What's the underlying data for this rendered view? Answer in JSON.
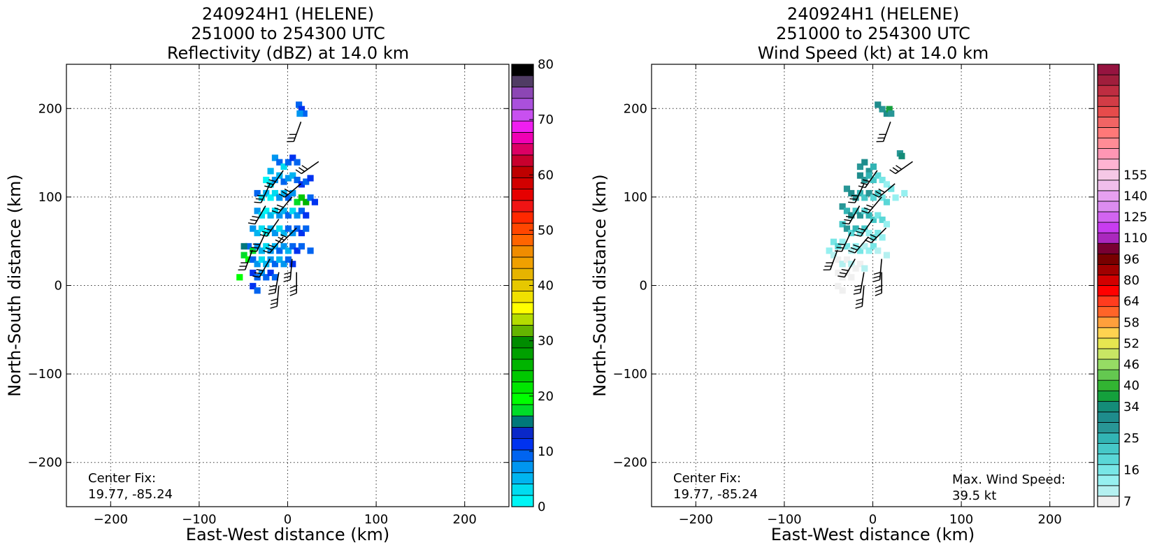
{
  "chart_data": [
    {
      "type": "heatmap",
      "title_lines": [
        "240924H1 (HELENE)",
        "251000 to 254300 UTC",
        "Reflectivity (dBZ) at 14.0 km"
      ],
      "xlabel": "East-West distance (km)",
      "ylabel": "North-South distance (km)",
      "xlim": [
        -250,
        250
      ],
      "ylim": [
        -250,
        250
      ],
      "xticks": [
        -200,
        -100,
        0,
        100,
        200
      ],
      "yticks": [
        -200,
        -100,
        0,
        100,
        200
      ],
      "xtick_labels": [
        "−200",
        "−100",
        "0",
        "100",
        "200"
      ],
      "ytick_labels": [
        "−200",
        "−100",
        "0",
        "100",
        "200"
      ],
      "grid": true,
      "annotations": {
        "center_fix_label": "Center Fix:",
        "center_fix_value": "19.77, -85.24"
      },
      "colorbar": {
        "range": [
          0,
          80
        ],
        "tick_values": [
          0,
          10,
          20,
          30,
          40,
          50,
          60,
          70,
          80
        ],
        "tick_labels": [
          "0",
          "10",
          "20",
          "30",
          "40",
          "50",
          "60",
          "70",
          "80"
        ],
        "colors": [
          "#00f5f5",
          "#00dcf0",
          "#00b4f0",
          "#0096f0",
          "#0064f0",
          "#0032f0",
          "#0a28c8",
          "#00787a",
          "#00dc28",
          "#00ff00",
          "#00e600",
          "#00c800",
          "#00b400",
          "#00a000",
          "#008c00",
          "#64b400",
          "#b4dc00",
          "#ffff00",
          "#f0e100",
          "#e6c800",
          "#e6b400",
          "#f0a000",
          "#f08c00",
          "#ff6400",
          "#ff4600",
          "#ff2800",
          "#f01414",
          "#e60000",
          "#d20000",
          "#be0000",
          "#c8002d",
          "#dc0064",
          "#f000b4",
          "#f01ef0",
          "#c850f0",
          "#aa50dc",
          "#8c46b4",
          "#503c64",
          "#000000"
        ]
      },
      "points": [
        [
          12,
          205,
          "#0064f0"
        ],
        [
          15,
          200,
          "#0032f0"
        ],
        [
          18,
          195,
          "#0064f0"
        ],
        [
          13,
          195,
          "#0096f0"
        ],
        [
          -15,
          145,
          "#0096f0"
        ],
        [
          -10,
          140,
          "#0064f0"
        ],
        [
          -5,
          135,
          "#00dcf0"
        ],
        [
          0,
          140,
          "#0064f0"
        ],
        [
          5,
          145,
          "#0032f0"
        ],
        [
          10,
          140,
          "#0064f0"
        ],
        [
          -20,
          130,
          "#00b4f0"
        ],
        [
          -25,
          120,
          "#00f5f5"
        ],
        [
          -20,
          115,
          "#00dcf0"
        ],
        [
          -15,
          120,
          "#0096f0"
        ],
        [
          -10,
          125,
          "#00b4f0"
        ],
        [
          -5,
          118,
          "#0064f0"
        ],
        [
          0,
          122,
          "#0096f0"
        ],
        [
          5,
          125,
          "#00b4f0"
        ],
        [
          10,
          120,
          "#0064f0"
        ],
        [
          15,
          115,
          "#0032f0"
        ],
        [
          20,
          118,
          "#0064f0"
        ],
        [
          25,
          122,
          "#0032f0"
        ],
        [
          -35,
          105,
          "#0064f0"
        ],
        [
          -30,
          100,
          "#00dcf0"
        ],
        [
          -25,
          105,
          "#00b4f0"
        ],
        [
          -20,
          100,
          "#00f5f5"
        ],
        [
          -15,
          105,
          "#00dcf0"
        ],
        [
          -10,
          100,
          "#0096f0"
        ],
        [
          -5,
          105,
          "#00b4f0"
        ],
        [
          0,
          100,
          "#0064f0"
        ],
        [
          5,
          105,
          "#0096f0"
        ],
        [
          10,
          95,
          "#00dc28"
        ],
        [
          15,
          100,
          "#00c800"
        ],
        [
          20,
          95,
          "#00b400"
        ],
        [
          25,
          100,
          "#0064f0"
        ],
        [
          30,
          95,
          "#0032f0"
        ],
        [
          -35,
          85,
          "#0096f0"
        ],
        [
          -30,
          80,
          "#00dcf0"
        ],
        [
          -25,
          85,
          "#00f5f5"
        ],
        [
          -20,
          80,
          "#00b4f0"
        ],
        [
          -15,
          85,
          "#00dcf0"
        ],
        [
          -10,
          80,
          "#0096f0"
        ],
        [
          -5,
          85,
          "#00b4f0"
        ],
        [
          0,
          80,
          "#0064f0"
        ],
        [
          5,
          85,
          "#00dcf0"
        ],
        [
          10,
          80,
          "#0096f0"
        ],
        [
          15,
          85,
          "#0064f0"
        ],
        [
          20,
          80,
          "#0032f0"
        ],
        [
          -40,
          65,
          "#0096f0"
        ],
        [
          -35,
          60,
          "#00b4f0"
        ],
        [
          -30,
          65,
          "#00dcf0"
        ],
        [
          -25,
          60,
          "#00f5f5"
        ],
        [
          -20,
          65,
          "#00b4f0"
        ],
        [
          -15,
          60,
          "#0096f0"
        ],
        [
          -10,
          65,
          "#00dcf0"
        ],
        [
          -5,
          60,
          "#00b4f0"
        ],
        [
          0,
          65,
          "#0064f0"
        ],
        [
          5,
          60,
          "#0096f0"
        ],
        [
          10,
          65,
          "#0064f0"
        ],
        [
          15,
          60,
          "#0032f0"
        ],
        [
          20,
          65,
          "#0064f0"
        ],
        [
          -45,
          45,
          "#0064f0"
        ],
        [
          -40,
          40,
          "#00dc28"
        ],
        [
          -35,
          45,
          "#0096f0"
        ],
        [
          -30,
          40,
          "#00b4f0"
        ],
        [
          -25,
          45,
          "#00dcf0"
        ],
        [
          -20,
          40,
          "#0096f0"
        ],
        [
          -15,
          45,
          "#00b4f0"
        ],
        [
          -10,
          40,
          "#0064f0"
        ],
        [
          -5,
          45,
          "#0096f0"
        ],
        [
          0,
          40,
          "#00b4f0"
        ],
        [
          5,
          45,
          "#0064f0"
        ],
        [
          10,
          40,
          "#0032f0"
        ],
        [
          15,
          45,
          "#0064f0"
        ],
        [
          25,
          40,
          "#0064f0"
        ],
        [
          -50,
          45,
          "#00787a"
        ],
        [
          -50,
          35,
          "#00dc28"
        ],
        [
          -45,
          30,
          "#00ff00"
        ],
        [
          -40,
          30,
          "#0064f0"
        ],
        [
          -35,
          25,
          "#0096f0"
        ],
        [
          -30,
          30,
          "#00dcf0"
        ],
        [
          -25,
          25,
          "#00b4f0"
        ],
        [
          -20,
          30,
          "#0096f0"
        ],
        [
          -15,
          25,
          "#0064f0"
        ],
        [
          -10,
          30,
          "#00b4f0"
        ],
        [
          -5,
          25,
          "#0096f0"
        ],
        [
          0,
          30,
          "#0064f0"
        ],
        [
          5,
          25,
          "#0032f0"
        ],
        [
          -40,
          15,
          "#0032f0"
        ],
        [
          -35,
          10,
          "#0064f0"
        ],
        [
          -30,
          15,
          "#0096f0"
        ],
        [
          -25,
          10,
          "#0064f0"
        ],
        [
          -20,
          15,
          "#0032f0"
        ],
        [
          -15,
          10,
          "#0064f0"
        ],
        [
          -55,
          10,
          "#00ff00"
        ],
        [
          -40,
          0,
          "#0032f0"
        ],
        [
          -35,
          -5,
          "#0064f0"
        ]
      ],
      "wind_barbs": [
        [
          15,
          185,
          200
        ],
        [
          35,
          140,
          235
        ],
        [
          -5,
          130,
          215
        ],
        [
          15,
          115,
          230
        ],
        [
          -20,
          115,
          205
        ],
        [
          5,
          100,
          220
        ],
        [
          -25,
          90,
          210
        ],
        [
          -10,
          75,
          215
        ],
        [
          10,
          65,
          225
        ],
        [
          -25,
          60,
          205
        ],
        [
          -5,
          55,
          220
        ],
        [
          -40,
          40,
          200
        ],
        [
          -20,
          30,
          210
        ],
        [
          5,
          30,
          185
        ],
        [
          -10,
          15,
          190
        ],
        [
          10,
          15,
          180
        ],
        [
          -10,
          0,
          185
        ]
      ]
    },
    {
      "type": "heatmap",
      "title_lines": [
        "240924H1 (HELENE)",
        "251000 to 254300 UTC",
        "Wind Speed (kt) at 14.0 km"
      ],
      "xlabel": "East-West distance (km)",
      "ylabel": "North-South distance (km)",
      "xlim": [
        -250,
        250
      ],
      "ylim": [
        -250,
        250
      ],
      "xticks": [
        -200,
        -100,
        0,
        100,
        200
      ],
      "yticks": [
        -200,
        -100,
        0,
        100,
        200
      ],
      "xtick_labels": [
        "−200",
        "−100",
        "0",
        "100",
        "200"
      ],
      "ytick_labels": [
        "−200",
        "−100",
        "0",
        "100",
        "200"
      ],
      "grid": true,
      "annotations": {
        "center_fix_label": "Center Fix:",
        "center_fix_value": "19.77, -85.24",
        "max_wind_label": "Max. Wind Speed:",
        "max_wind_value": "39.5 kt"
      },
      "colorbar": {
        "tick_labels": [
          "7",
          "16",
          "25",
          "34",
          "40",
          "46",
          "52",
          "58",
          "64",
          "80",
          "96",
          "110",
          "125",
          "140",
          "155"
        ],
        "tick_bin_index": [
          0,
          3,
          6,
          9,
          11,
          13,
          15,
          17,
          19,
          21,
          23,
          25,
          27,
          29,
          31
        ],
        "colors": [
          "#f0f0f0",
          "#b4f0f0",
          "#96f0f0",
          "#78e6e6",
          "#5ad7d7",
          "#46c8c8",
          "#32b4b4",
          "#289696",
          "#1e8c8c",
          "#148c78",
          "#14a03c",
          "#32b432",
          "#64c850",
          "#96dc64",
          "#c8e664",
          "#e6e650",
          "#ffd250",
          "#ffa03c",
          "#ff6428",
          "#ff3c1e",
          "#ff0000",
          "#d20000",
          "#a00000",
          "#780000",
          "#780032",
          "#aa28be",
          "#c83cf0",
          "#d264f0",
          "#dc8cf0",
          "#e6a0f0",
          "#f0beeb",
          "#f5c8e6",
          "#ffb4d2",
          "#ff96b4",
          "#ff8c96",
          "#ff7878",
          "#f06464",
          "#e64b4b",
          "#d23c46",
          "#be2d41",
          "#a01e3c",
          "#961440"
        ]
      },
      "points": [
        [
          10,
          200,
          "#289696"
        ],
        [
          15,
          195,
          "#1e8c8c"
        ],
        [
          18,
          200,
          "#14a03c"
        ],
        [
          20,
          195,
          "#289696"
        ],
        [
          5,
          205,
          "#1e8c8c"
        ],
        [
          30,
          150,
          "#289696"
        ],
        [
          32,
          147,
          "#148c78"
        ],
        [
          -15,
          135,
          "#289696"
        ],
        [
          -10,
          140,
          "#1e8c8c"
        ],
        [
          -5,
          130,
          "#289696"
        ],
        [
          0,
          135,
          "#32b4b4"
        ],
        [
          -15,
          125,
          "#1e8c8c"
        ],
        [
          -10,
          120,
          "#289696"
        ],
        [
          -5,
          125,
          "#32b4b4"
        ],
        [
          0,
          120,
          "#46c8c8"
        ],
        [
          5,
          125,
          "#5ad7d7"
        ],
        [
          10,
          120,
          "#78e6e6"
        ],
        [
          15,
          115,
          "#96f0f0"
        ],
        [
          20,
          110,
          "#78e6e6"
        ],
        [
          25,
          100,
          "#96f0f0"
        ],
        [
          35,
          105,
          "#96f0f0"
        ],
        [
          -30,
          110,
          "#289696"
        ],
        [
          -25,
          105,
          "#1e8c8c"
        ],
        [
          -20,
          100,
          "#289696"
        ],
        [
          -15,
          105,
          "#32b4b4"
        ],
        [
          -10,
          100,
          "#46c8c8"
        ],
        [
          -5,
          105,
          "#289696"
        ],
        [
          0,
          100,
          "#5ad7d7"
        ],
        [
          5,
          105,
          "#46c8c8"
        ],
        [
          10,
          100,
          "#78e6e6"
        ],
        [
          15,
          95,
          "#5ad7d7"
        ],
        [
          -35,
          90,
          "#289696"
        ],
        [
          -30,
          85,
          "#32b4b4"
        ],
        [
          -25,
          80,
          "#1e8c8c"
        ],
        [
          -20,
          85,
          "#46c8c8"
        ],
        [
          -15,
          80,
          "#289696"
        ],
        [
          -10,
          85,
          "#5ad7d7"
        ],
        [
          -5,
          80,
          "#32b4b4"
        ],
        [
          0,
          75,
          "#46c8c8"
        ],
        [
          5,
          80,
          "#78e6e6"
        ],
        [
          10,
          75,
          "#5ad7d7"
        ],
        [
          15,
          70,
          "#96f0f0"
        ],
        [
          -35,
          70,
          "#46c8c8"
        ],
        [
          -30,
          65,
          "#289696"
        ],
        [
          -25,
          60,
          "#5ad7d7"
        ],
        [
          -20,
          65,
          "#32b4b4"
        ],
        [
          -15,
          60,
          "#78e6e6"
        ],
        [
          -10,
          65,
          "#46c8c8"
        ],
        [
          -5,
          60,
          "#96f0f0"
        ],
        [
          0,
          55,
          "#5ad7d7"
        ],
        [
          5,
          60,
          "#78e6e6"
        ],
        [
          10,
          55,
          "#96f0f0"
        ],
        [
          -45,
          50,
          "#78e6e6"
        ],
        [
          -40,
          45,
          "#5ad7d7"
        ],
        [
          -35,
          50,
          "#96f0f0"
        ],
        [
          -30,
          45,
          "#78e6e6"
        ],
        [
          -25,
          40,
          "#b4f0f0"
        ],
        [
          -20,
          45,
          "#96f0f0"
        ],
        [
          -15,
          40,
          "#78e6e6"
        ],
        [
          -10,
          45,
          "#b4f0f0"
        ],
        [
          -5,
          40,
          "#96f0f0"
        ],
        [
          0,
          45,
          "#78e6e6"
        ],
        [
          5,
          40,
          "#b4f0f0"
        ],
        [
          15,
          35,
          "#b4f0f0"
        ],
        [
          -50,
          40,
          "#96f0f0"
        ],
        [
          -45,
          35,
          "#b4f0f0"
        ],
        [
          -40,
          30,
          "#f0f0f0"
        ],
        [
          -35,
          25,
          "#b4f0f0"
        ],
        [
          -30,
          30,
          "#f0f0f0"
        ],
        [
          -25,
          25,
          "#b4f0f0"
        ],
        [
          -20,
          20,
          "#f0f0f0"
        ],
        [
          -15,
          25,
          "#f0f0f0"
        ],
        [
          -10,
          20,
          "#b4f0f0"
        ],
        [
          -40,
          15,
          "#f0f0f0"
        ],
        [
          -35,
          10,
          "#f0f0f0"
        ],
        [
          -30,
          15,
          "#f0f0f0"
        ],
        [
          -25,
          10,
          "#f0f0f0"
        ],
        [
          -40,
          0,
          "#f0f0f0"
        ],
        [
          -35,
          -5,
          "#f0f0f0"
        ]
      ],
      "wind_barbs": [
        [
          20,
          185,
          200
        ],
        [
          45,
          140,
          235
        ],
        [
          5,
          130,
          215
        ],
        [
          25,
          115,
          230
        ],
        [
          -10,
          115,
          205
        ],
        [
          10,
          100,
          220
        ],
        [
          -15,
          90,
          210
        ],
        [
          0,
          75,
          215
        ],
        [
          15,
          65,
          225
        ],
        [
          -25,
          60,
          205
        ],
        [
          -5,
          55,
          220
        ],
        [
          -40,
          40,
          200
        ],
        [
          -20,
          30,
          210
        ],
        [
          10,
          30,
          185
        ],
        [
          -10,
          15,
          190
        ],
        [
          10,
          15,
          180
        ],
        [
          -10,
          0,
          185
        ]
      ]
    }
  ]
}
